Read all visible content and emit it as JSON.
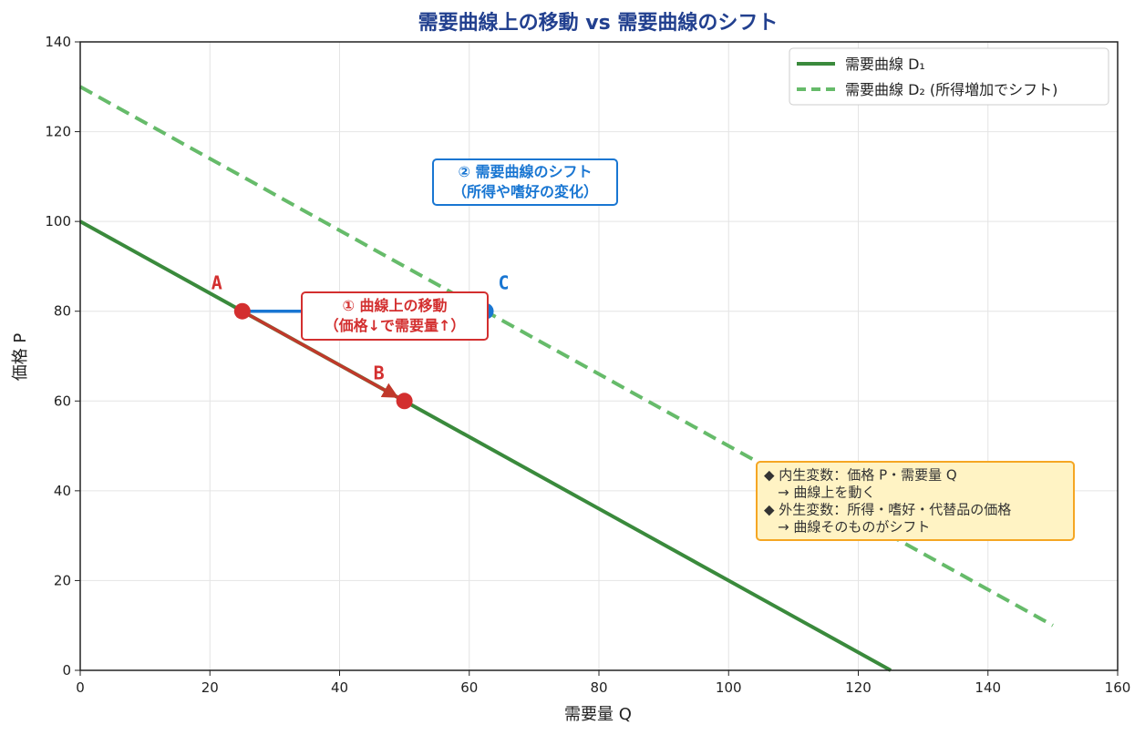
{
  "chart_data": {
    "type": "line",
    "title": "需要曲線上の移動 vs 需要曲線のシフト",
    "xlabel": "需要量 Q",
    "ylabel": "価格 P",
    "xlim": [
      0,
      160
    ],
    "ylim": [
      0,
      140
    ],
    "xticks": [
      0,
      20,
      40,
      60,
      80,
      100,
      120,
      140,
      160
    ],
    "yticks": [
      0,
      20,
      40,
      60,
      80,
      100,
      120,
      140
    ],
    "grid": true,
    "legend_position": "top-right",
    "series": [
      {
        "name": "需要曲線 D₁",
        "style": "solid",
        "color": "#3a8a3c",
        "x": [
          0,
          125
        ],
        "y": [
          100,
          0
        ]
      },
      {
        "name": "需要曲線 D₂ (所得増加でシフト)",
        "style": "dashed",
        "color": "#66bb6a",
        "x": [
          0,
          150
        ],
        "y": [
          130,
          10
        ]
      }
    ],
    "points": [
      {
        "label": "A",
        "x": 25,
        "y": 80,
        "color": "#d32f2f"
      },
      {
        "label": "B",
        "x": 50,
        "y": 60,
        "color": "#d32f2f"
      },
      {
        "label": "C",
        "x": 62.5,
        "y": 80,
        "color": "#1976d2"
      }
    ],
    "arrows": [
      {
        "from": [
          25,
          80
        ],
        "to": [
          50,
          60
        ],
        "color": "#c0392b"
      },
      {
        "from": [
          25,
          80
        ],
        "to": [
          62.5,
          80
        ],
        "color": "#1976d2"
      }
    ],
    "annotations": {
      "movement": {
        "lines": [
          "① 曲線上の移動",
          "（価格↓で需要量↑）"
        ],
        "color": "#d32f2f",
        "x": 46,
        "y": 78
      },
      "shift": {
        "lines": [
          "② 需要曲線のシフト",
          "（所得や嗜好の変化）"
        ],
        "color": "#1976d2",
        "x": 67,
        "y": 108
      },
      "note": {
        "lines": [
          "◆ 内生変数：価格 P・需要量 Q",
          "　→ 曲線上を動く",
          "◆ 外生変数：所得・嗜好・代替品の価格",
          "　→ 曲線そのものがシフト"
        ],
        "bg": "#fff3c4",
        "border": "#f5a623"
      }
    }
  }
}
